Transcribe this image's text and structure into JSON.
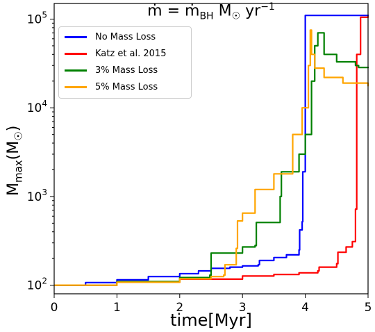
{
  "chart_data": {
    "type": "line",
    "title": "ṁ = ṁ_BH M☉ yr⁻¹",
    "xlabel": "time[Myr]",
    "ylabel": "M_max(M☉)",
    "xlim": [
      0,
      5
    ],
    "ylim": [
      80,
      150000
    ],
    "yscale": "log",
    "grid": false,
    "legend_position": "upper-left",
    "x_ticks": [
      "0",
      "1",
      "2",
      "3",
      "4",
      "5"
    ],
    "y_ticks": [
      "10^2",
      "10^3",
      "10^4",
      "10^5"
    ],
    "series": [
      {
        "name": "No Mass Loss",
        "color": "#0000ff",
        "x": [
          0,
          0.5,
          1.0,
          1.5,
          2.0,
          2.3,
          2.5,
          2.8,
          3.0,
          3.25,
          3.27,
          3.5,
          3.7,
          3.9,
          3.91,
          3.95,
          3.96,
          4.0,
          4.5,
          5.0
        ],
        "y": [
          100,
          107,
          115,
          125,
          135,
          145,
          155,
          160,
          165,
          170,
          190,
          205,
          220,
          250,
          420,
          520,
          1900,
          110000,
          110000,
          112000
        ]
      },
      {
        "name": "Katz et al.  2015",
        "color": "#ff0000",
        "x": [
          0,
          1.0,
          2.0,
          3.0,
          3.5,
          3.9,
          4.2,
          4.22,
          4.5,
          4.52,
          4.65,
          4.75,
          4.8,
          4.82,
          4.88,
          5.0
        ],
        "y": [
          100,
          108,
          117,
          127,
          132,
          138,
          145,
          160,
          175,
          235,
          270,
          310,
          720,
          40000,
          105000,
          108000
        ]
      },
      {
        "name": "3% Mass Loss",
        "color": "#008000",
        "x": [
          0,
          1.0,
          2.0,
          2.48,
          2.5,
          3.0,
          3.2,
          3.22,
          3.6,
          3.62,
          3.9,
          4.0,
          4.1,
          4.15,
          4.2,
          4.3,
          4.5,
          4.8,
          4.85,
          5.0
        ],
        "y": [
          100,
          110,
          122,
          130,
          230,
          270,
          280,
          510,
          1000,
          1900,
          3000,
          5000,
          20000,
          50000,
          70000,
          40000,
          33000,
          30000,
          28500,
          28000
        ]
      },
      {
        "name": "5% Mass Loss",
        "color": "#ffa500",
        "x": [
          0,
          1.0,
          2.0,
          2.5,
          2.7,
          2.72,
          2.9,
          2.92,
          3.0,
          3.2,
          3.5,
          3.8,
          3.95,
          4.05,
          4.08,
          4.1,
          4.15,
          4.3,
          4.6,
          5.0
        ],
        "y": [
          100,
          108,
          118,
          125,
          130,
          170,
          260,
          530,
          650,
          1200,
          1800,
          5000,
          10000,
          30000,
          75000,
          40000,
          28000,
          22000,
          19000,
          17500
        ]
      }
    ]
  }
}
